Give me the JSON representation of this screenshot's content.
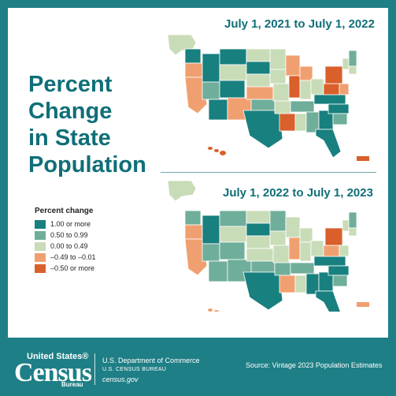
{
  "title_lines": [
    "Percent",
    "Change",
    "in State",
    "Population"
  ],
  "maps": [
    {
      "title": "July 1, 2021 to July 1, 2022"
    },
    {
      "title": "July 1, 2022 to July 1, 2023"
    }
  ],
  "legend": {
    "title": "Percent change",
    "items": [
      {
        "label": "1.00 or more",
        "color": "#18807f"
      },
      {
        "label": "0.50 to 0.99",
        "color": "#6fae9a"
      },
      {
        "label": "0.00 to 0.49",
        "color": "#c9dcb8"
      },
      {
        "label": "–0.49 to –0.01",
        "color": "#f0a070"
      },
      {
        "label": "–0.50 or more",
        "color": "#d95f2b"
      }
    ]
  },
  "footer": {
    "logo_top": "United States®",
    "logo_main": "Census",
    "logo_bottom": "Bureau",
    "dept": "U.S. Department of Commerce",
    "bureau": "U.S. CENSUS BUREAU",
    "site": "census.gov",
    "source": "Source: Vintage 2023 Population Estimates"
  },
  "colors": {
    "brand_teal": "#1e7f86",
    "title_teal": "#0f6f78"
  }
}
